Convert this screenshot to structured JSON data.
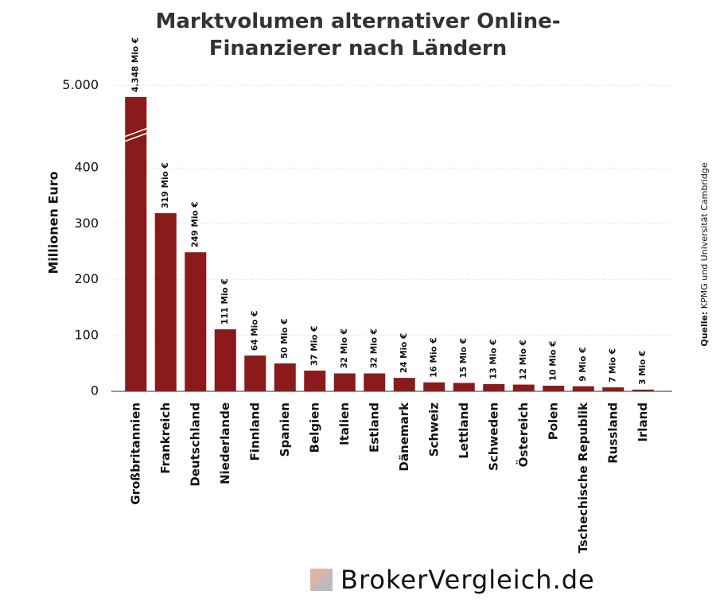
{
  "chart_data": {
    "type": "bar",
    "title": "Marktvolumen alternativer Online-Finanzierer nach Ländern",
    "ylabel": "Millionen Euro",
    "categories": [
      "Großbritannien",
      "Frankreich",
      "Deutschland",
      "Niederlande",
      "Finnland",
      "Spanien",
      "Belgien",
      "Italien",
      "Estland",
      "Dänemark",
      "Schweiz",
      "Lettland",
      "Schweden",
      "Östereich",
      "Polen",
      "Tschechische Republik",
      "Russland",
      "Irland"
    ],
    "values": [
      4348,
      319,
      249,
      111,
      64,
      50,
      37,
      32,
      32,
      24,
      16,
      15,
      13,
      12,
      10,
      9,
      7,
      3
    ],
    "value_labels": [
      "4.348 Mio €",
      "319 Mio €",
      "249 Mio €",
      "111 Mio €",
      "64 Mio €",
      "50 Mio €",
      "37 Mio €",
      "32 Mio €",
      "32 Mio €",
      "24 Mio €",
      "16 Mio €",
      "15 Mio €",
      "13 Mio €",
      "12 Mio €",
      "10 Mio €",
      "9 Mio €",
      "7 Mio €",
      "3 Mio €"
    ],
    "color": "#8b1a1a",
    "ylim": [
      0,
      5000
    ],
    "yticks": [
      0,
      100,
      200,
      300,
      400,
      {
        "value": 5000,
        "label": "5.000"
      }
    ],
    "axis_break": true,
    "grid": true,
    "source_label": "Quelle:",
    "source": "KPMG und Universität Cambridge",
    "logo": "BrokerVergleich.de"
  }
}
